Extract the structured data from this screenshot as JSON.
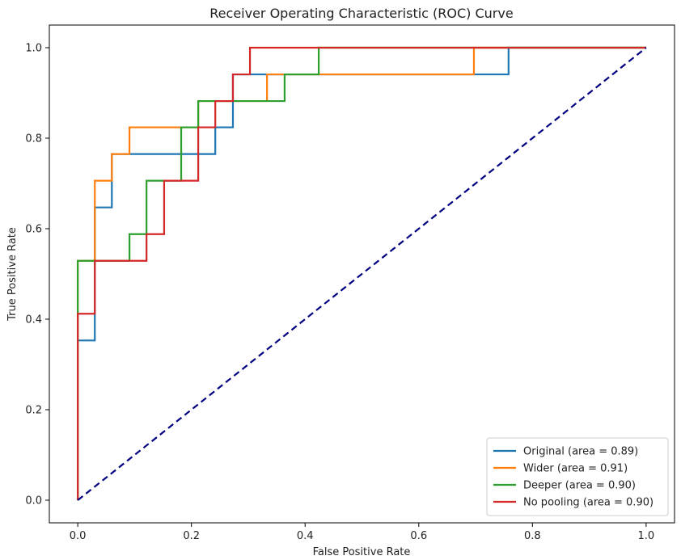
{
  "chart_data": {
    "type": "line",
    "title": "Receiver Operating Characteristic (ROC) Curve",
    "xlabel": "False Positive Rate",
    "ylabel": "True Positive Rate",
    "xlim": [
      -0.05,
      1.05
    ],
    "ylim": [
      -0.05,
      1.05
    ],
    "xticks": [
      "0.0",
      "0.2",
      "0.4",
      "0.6",
      "0.8",
      "1.0"
    ],
    "yticks": [
      "0.0",
      "0.2",
      "0.4",
      "0.6",
      "0.8",
      "1.0"
    ],
    "grid": false,
    "legend_position": "lower-right",
    "series": [
      {
        "name": "Original (area = 0.89)",
        "color": "#1f77b4",
        "x": [
          0.0,
          0.0,
          0.03,
          0.03,
          0.06,
          0.06,
          0.091,
          0.091,
          0.242,
          0.242,
          0.273,
          0.273,
          0.303,
          0.303,
          0.758,
          0.758,
          1.0
        ],
        "y": [
          0.0,
          0.353,
          0.353,
          0.647,
          0.647,
          0.765,
          0.765,
          0.765,
          0.765,
          0.824,
          0.824,
          0.941,
          0.941,
          0.941,
          0.941,
          1.0,
          1.0
        ]
      },
      {
        "name": "Wider (area = 0.91)",
        "color": "#ff7f0e",
        "x": [
          0.0,
          0.0,
          0.03,
          0.03,
          0.06,
          0.06,
          0.091,
          0.091,
          0.212,
          0.212,
          0.273,
          0.273,
          0.333,
          0.333,
          0.697,
          0.697,
          1.0
        ],
        "y": [
          0.0,
          0.529,
          0.529,
          0.706,
          0.706,
          0.765,
          0.765,
          0.824,
          0.824,
          0.882,
          0.882,
          0.882,
          0.882,
          0.941,
          0.941,
          1.0,
          1.0
        ]
      },
      {
        "name": "Deeper (area = 0.90)",
        "color": "#2ca02c",
        "x": [
          0.0,
          0.0,
          0.091,
          0.091,
          0.121,
          0.121,
          0.182,
          0.182,
          0.212,
          0.212,
          0.364,
          0.364,
          0.424,
          0.424,
          1.0
        ],
        "y": [
          0.0,
          0.529,
          0.529,
          0.588,
          0.588,
          0.706,
          0.706,
          0.824,
          0.824,
          0.882,
          0.882,
          0.941,
          0.941,
          1.0,
          1.0
        ]
      },
      {
        "name": "No pooling (area = 0.90)",
        "color": "#d62728",
        "x": [
          0.0,
          0.0,
          0.03,
          0.03,
          0.121,
          0.121,
          0.152,
          0.152,
          0.212,
          0.212,
          0.242,
          0.242,
          0.273,
          0.273,
          0.303,
          0.303,
          1.0
        ],
        "y": [
          0.0,
          0.412,
          0.412,
          0.529,
          0.529,
          0.588,
          0.588,
          0.706,
          0.706,
          0.824,
          0.824,
          0.882,
          0.882,
          0.941,
          0.941,
          1.0,
          1.0
        ]
      }
    ],
    "diagonal": {
      "color": "#000080",
      "style": "dashed",
      "x": [
        0.0,
        1.0
      ],
      "y": [
        0.0,
        1.0
      ]
    }
  }
}
